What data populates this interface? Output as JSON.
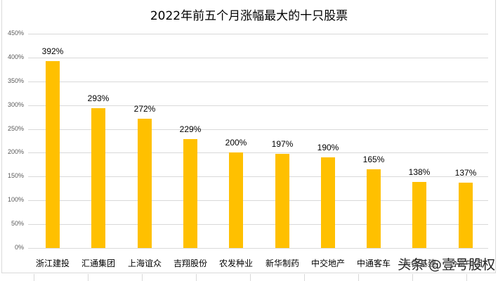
{
  "chart_data": {
    "type": "bar",
    "title": "2022年前五个月涨幅最大的十只股票",
    "xlabel": "",
    "ylabel": "",
    "ylim": [
      0,
      450
    ],
    "yticks": [
      "0%",
      "50%",
      "100%",
      "150%",
      "200%",
      "250%",
      "300%",
      "350%",
      "400%",
      "450%"
    ],
    "grid": true,
    "legend": "none",
    "bar_color": "#ffc000",
    "categories": [
      "浙江建投",
      "汇通集团",
      "上海谊众",
      "吉翔股份",
      "农发种业",
      "新华制药",
      "中交地产",
      "中通客车",
      "天保基建",
      "合富中国"
    ],
    "values": [
      392,
      293,
      272,
      229,
      200,
      197,
      190,
      165,
      138,
      137
    ],
    "value_labels": [
      "392%",
      "293%",
      "272%",
      "229%",
      "200%",
      "197%",
      "190%",
      "165%",
      "138%",
      "137%"
    ],
    "unit": "%"
  },
  "watermark": "头条 @壹号股权"
}
